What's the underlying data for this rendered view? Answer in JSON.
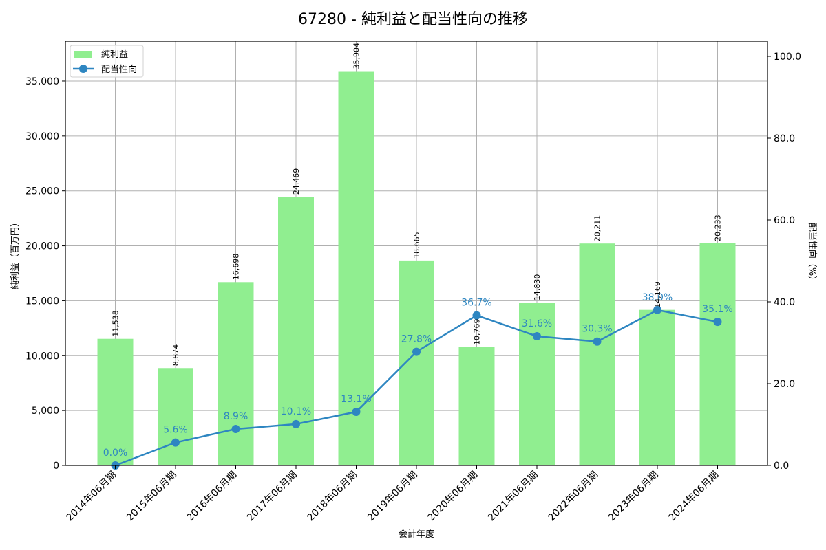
{
  "chart_data": {
    "type": "bar+line",
    "title": "67280 - 純利益と配当性向の推移",
    "xlabel": "会計年度",
    "ylabel": "純利益（百万円）",
    "y2label": "配当性向（%）",
    "categories": [
      "2014年06月期",
      "2015年06月期",
      "2016年06月期",
      "2017年06月期",
      "2018年06月期",
      "2019年06月期",
      "2020年06月期",
      "2021年06月期",
      "2022年06月期",
      "2023年06月期",
      "2024年06月期"
    ],
    "series": [
      {
        "name": "純利益",
        "type": "bar",
        "axis": "left",
        "color": "#90ee90",
        "values": [
          11538,
          8874,
          16698,
          24469,
          35904,
          18665,
          10769,
          14830,
          20211,
          14169,
          20233
        ],
        "labels": [
          "11,538",
          "8,874",
          "16,698",
          "24,469",
          "35,904",
          "18,665",
          "10,769",
          "14,830",
          "20,211",
          "14,169",
          "20,233"
        ]
      },
      {
        "name": "配当性向",
        "type": "line",
        "axis": "right",
        "color": "#2e86c1",
        "values": [
          0.0,
          5.6,
          8.9,
          10.1,
          13.1,
          27.8,
          36.7,
          31.6,
          30.3,
          38.0,
          35.1
        ],
        "labels": [
          "0.0%",
          "5.6%",
          "8.9%",
          "10.1%",
          "13.1%",
          "27.8%",
          "36.7%",
          "31.6%",
          "30.3%",
          "38.0%",
          "35.1%"
        ]
      }
    ],
    "ylim": [
      0,
      38630
    ],
    "y2lim": [
      0,
      103.7
    ],
    "yticks": [
      0,
      5000,
      10000,
      15000,
      20000,
      25000,
      30000,
      35000
    ],
    "yticklabels": [
      "0",
      "5,000",
      "10,000",
      "15,000",
      "20,000",
      "25,000",
      "30,000",
      "35,000"
    ],
    "y2ticks": [
      0,
      20,
      40,
      60,
      80,
      100
    ],
    "y2ticklabels": [
      "0.0",
      "20.0",
      "40.0",
      "60.0",
      "80.0",
      "100.0"
    ],
    "grid": true,
    "legend_position": "upper left"
  }
}
